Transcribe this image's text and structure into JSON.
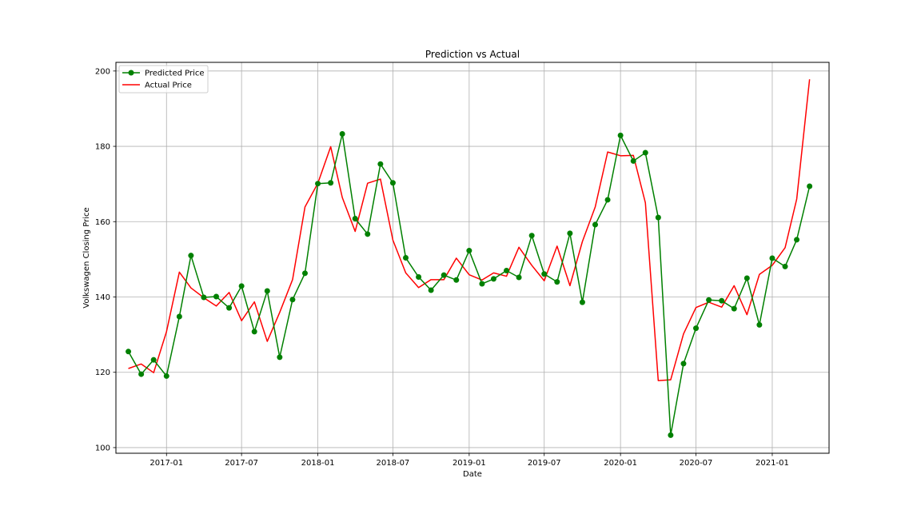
{
  "chart_data": {
    "type": "line",
    "title": "Prediction vs Actual",
    "xlabel": "Date",
    "ylabel": "Volkswagen Closing Price",
    "x_axis_type": "date",
    "xlim": [
      "2016-09-01",
      "2021-05-18"
    ],
    "ylim": [
      98.5,
      202.3
    ],
    "x_ticks": [
      {
        "date": "2017-01-01",
        "label": "2017-01"
      },
      {
        "date": "2017-07-01",
        "label": "2017-07"
      },
      {
        "date": "2018-01-01",
        "label": "2018-01"
      },
      {
        "date": "2018-07-01",
        "label": "2018-07"
      },
      {
        "date": "2019-01-01",
        "label": "2019-01"
      },
      {
        "date": "2019-07-01",
        "label": "2019-07"
      },
      {
        "date": "2020-01-01",
        "label": "2020-01"
      },
      {
        "date": "2020-07-01",
        "label": "2020-07"
      },
      {
        "date": "2021-01-01",
        "label": "2021-01"
      }
    ],
    "y_ticks": [
      100,
      120,
      140,
      160,
      180,
      200
    ],
    "grid": true,
    "legend_position": "top-left",
    "x": [
      "2016-10-01",
      "2016-11-01",
      "2016-12-01",
      "2017-01-01",
      "2017-02-01",
      "2017-03-01",
      "2017-04-01",
      "2017-05-01",
      "2017-06-01",
      "2017-07-01",
      "2017-08-01",
      "2017-09-01",
      "2017-10-01",
      "2017-11-01",
      "2017-12-01",
      "2018-01-01",
      "2018-02-01",
      "2018-03-01",
      "2018-04-01",
      "2018-05-01",
      "2018-06-01",
      "2018-07-01",
      "2018-08-01",
      "2018-09-01",
      "2018-10-01",
      "2018-11-01",
      "2018-12-01",
      "2019-01-01",
      "2019-02-01",
      "2019-03-01",
      "2019-04-01",
      "2019-05-01",
      "2019-06-01",
      "2019-07-01",
      "2019-08-01",
      "2019-09-01",
      "2019-10-01",
      "2019-11-01",
      "2019-12-01",
      "2020-01-01",
      "2020-02-01",
      "2020-03-01",
      "2020-04-01",
      "2020-05-01",
      "2020-06-01",
      "2020-07-01",
      "2020-08-01",
      "2020-09-01",
      "2020-10-01",
      "2020-11-01",
      "2020-12-01",
      "2021-01-01",
      "2021-02-01",
      "2021-03-01",
      "2021-04-01"
    ],
    "series": [
      {
        "name": "Predicted Price",
        "color": "#008000",
        "marker": "circle",
        "values": [
          125.5,
          119.5,
          123.3,
          119.0,
          134.8,
          151.0,
          139.9,
          140.1,
          137.1,
          142.9,
          130.8,
          141.6,
          124.0,
          139.3,
          146.3,
          170.1,
          170.3,
          183.3,
          160.8,
          156.7,
          175.3,
          170.3,
          150.4,
          145.3,
          141.8,
          145.8,
          144.5,
          152.3,
          143.5,
          144.8,
          147.0,
          145.2,
          156.3,
          146.1,
          144.0,
          156.9,
          138.6,
          159.2,
          165.8,
          182.9,
          176.1,
          178.3,
          161.1,
          103.3,
          122.3,
          131.7,
          139.2,
          139.0,
          136.9,
          145.0,
          132.6,
          150.3,
          148.1,
          155.2,
          169.4
        ]
      },
      {
        "name": "Actual Price",
        "color": "#ff0000",
        "marker": "none",
        "values": [
          121.0,
          122.2,
          119.9,
          130.8,
          146.6,
          142.4,
          139.8,
          137.6,
          141.2,
          133.7,
          138.7,
          128.2,
          135.9,
          144.6,
          163.9,
          170.2,
          179.9,
          166.4,
          157.4,
          170.2,
          171.3,
          155.1,
          146.4,
          142.5,
          144.6,
          144.6,
          150.3,
          145.9,
          144.5,
          146.4,
          145.5,
          153.2,
          148.4,
          144.3,
          153.5,
          143.0,
          154.7,
          163.9,
          178.5,
          177.5,
          177.6,
          165.0,
          117.8,
          118.0,
          130.2,
          137.2,
          138.6,
          137.3,
          143.0,
          135.3,
          146.0,
          148.4,
          153.1,
          166.0,
          197.8
        ]
      }
    ]
  }
}
